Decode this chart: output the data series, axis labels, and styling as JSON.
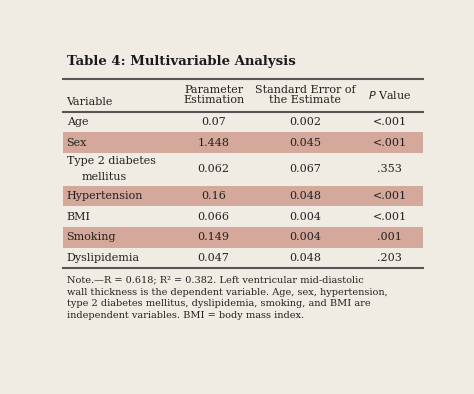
{
  "title": "Table 4: Multivariable Analysis",
  "rows": [
    {
      "label": "Age",
      "values": [
        "0.07",
        "0.002",
        "<.001"
      ],
      "shaded": false,
      "tall": false
    },
    {
      "label": "Sex",
      "values": [
        "1.448",
        "0.045",
        "<.001"
      ],
      "shaded": true,
      "tall": false
    },
    {
      "label": "Type 2 diabetes\nmellitus",
      "values": [
        "0.062",
        "0.067",
        ".353"
      ],
      "shaded": false,
      "tall": true
    },
    {
      "label": "Hypertension",
      "values": [
        "0.16",
        "0.048",
        "<.001"
      ],
      "shaded": true,
      "tall": false
    },
    {
      "label": "BMI",
      "values": [
        "0.066",
        "0.004",
        "<.001"
      ],
      "shaded": false,
      "tall": false
    },
    {
      "label": "Smoking",
      "values": [
        "0.149",
        "0.004",
        ".001"
      ],
      "shaded": true,
      "tall": false
    },
    {
      "label": "Dyslipidemia",
      "values": [
        "0.047",
        "0.048",
        ".203"
      ],
      "shaded": false,
      "tall": false
    }
  ],
  "note": "Note.—R = 0.618; R² = 0.382. Left ventricular mid-diastolic\nwall thickness is the dependent variable. Age, sex, hypertension,\ntype 2 diabetes mellitus, dyslipidemia, smoking, and BMI are\nindependent variables. BMI = body mass index.",
  "shaded_color": "#d4a89a",
  "bg_color": "#f0ece4",
  "title_color": "#1a1a1a",
  "text_color": "#222222",
  "line_color": "#555555",
  "fig_width": 4.74,
  "fig_height": 3.94,
  "dpi": 100
}
